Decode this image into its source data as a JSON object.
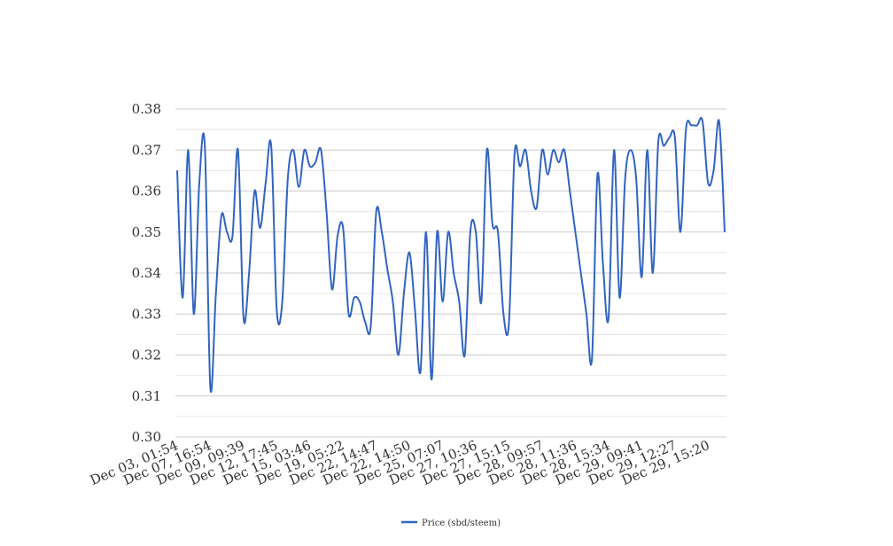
{
  "chart_data": {
    "type": "line",
    "title": "",
    "xlabel": "",
    "ylabel": "",
    "ylim": [
      0.3,
      0.38
    ],
    "yticks": [
      "0.30",
      "0.31",
      "0.32",
      "0.33",
      "0.34",
      "0.35",
      "0.36",
      "0.37",
      "0.38"
    ],
    "xtick_labels": [
      "Dec 03, 01:54",
      "Dec 07, 16:54",
      "Dec 09, 09:39",
      "Dec 12, 17:45",
      "Dec 15, 03:46",
      "Dec 19, 05:22",
      "Dec 22, 14:47",
      "Dec 22, 14:50",
      "Dec 25, 07:07",
      "Dec 27, 10:36",
      "Dec 27, 15:15",
      "Dec 28, 09:57",
      "Dec 28, 11:36",
      "Dec 28, 15:34",
      "Dec 29, 09:41",
      "Dec 29, 12:27",
      "Dec 29, 15:20"
    ],
    "grid": true,
    "legend_position": "bottom",
    "series": [
      {
        "name": "Price (sbd/steem)",
        "color": "#3264c0",
        "values": [
          0.365,
          0.334,
          0.37,
          0.33,
          0.362,
          0.371,
          0.312,
          0.335,
          0.354,
          0.35,
          0.349,
          0.37,
          0.329,
          0.34,
          0.36,
          0.351,
          0.362,
          0.371,
          0.331,
          0.333,
          0.363,
          0.37,
          0.361,
          0.37,
          0.366,
          0.367,
          0.37,
          0.355,
          0.336,
          0.349,
          0.351,
          0.33,
          0.334,
          0.333,
          0.328,
          0.327,
          0.355,
          0.35,
          0.341,
          0.333,
          0.32,
          0.335,
          0.345,
          0.331,
          0.316,
          0.35,
          0.314,
          0.35,
          0.333,
          0.35,
          0.34,
          0.333,
          0.32,
          0.35,
          0.35,
          0.333,
          0.37,
          0.352,
          0.35,
          0.33,
          0.328,
          0.369,
          0.366,
          0.37,
          0.36,
          0.356,
          0.37,
          0.364,
          0.37,
          0.367,
          0.37,
          0.36,
          0.35,
          0.34,
          0.33,
          0.319,
          0.364,
          0.342,
          0.329,
          0.37,
          0.334,
          0.363,
          0.37,
          0.363,
          0.339,
          0.37,
          0.34,
          0.372,
          0.371,
          0.373,
          0.373,
          0.35,
          0.375,
          0.376,
          0.376,
          0.377,
          0.362,
          0.365,
          0.377,
          0.35
        ]
      }
    ]
  }
}
